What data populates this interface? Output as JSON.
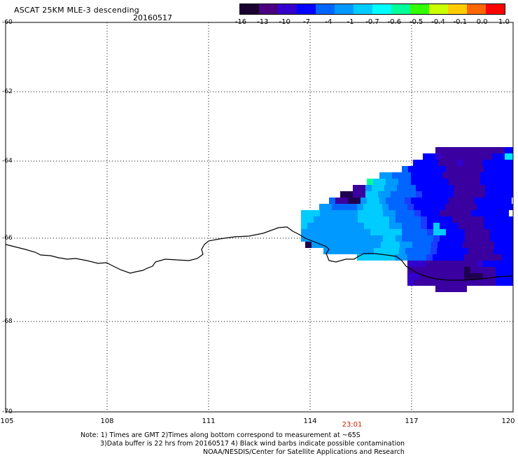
{
  "header": {
    "title": "ASCAT 25KM MLE-3 descending",
    "date": "20160517"
  },
  "colorbar": {
    "labels": [
      "-16",
      "-13",
      "-10",
      "-7",
      "-4",
      "-1",
      "-0.7",
      "-0.6",
      "-0.5",
      "-0.4",
      "-0.1",
      "0.0",
      "1.0"
    ],
    "colors": [
      "#1a0030",
      "#4a0080",
      "#3300cc",
      "#0000ff",
      "#0066ff",
      "#0099ff",
      "#00ccff",
      "#00ffff",
      "#00ff99",
      "#33ff00",
      "#ccff00",
      "#ffcc00",
      "#ff6600",
      "#ff0000"
    ]
  },
  "axes": {
    "lat_labels": [
      "-60",
      "-62",
      "-64",
      "-66",
      "-68",
      "-70"
    ],
    "lon_labels": [
      "105",
      "108",
      "111",
      "114",
      "117",
      "120"
    ],
    "grid": "dotted"
  },
  "time_label": "23:01",
  "notes": {
    "line1": "Note: 1) Times are GMT 2)Times along bottom correspond to measurement at ~65S",
    "line2": "3)Data buffer is 22 hrs from 20160517 4) Black wind barbs indicate possible contamination",
    "line3": "NOAA/NESDIS/Center for Satellite Applications and Research"
  }
}
